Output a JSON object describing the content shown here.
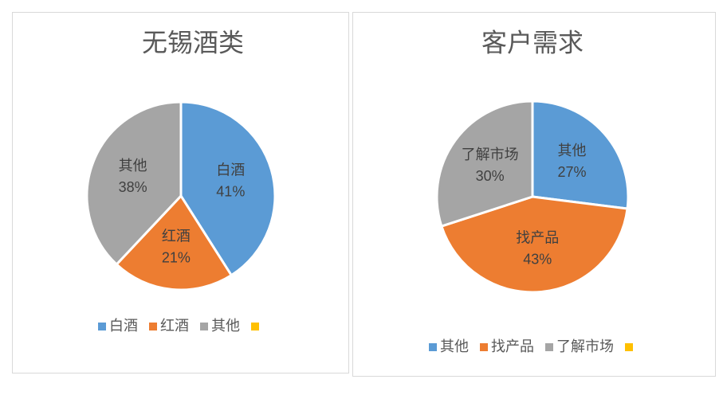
{
  "chart_data": [
    {
      "type": "pie",
      "title": "无锡酒类",
      "categories": [
        "白酒",
        "红酒",
        "其他",
        null
      ],
      "values": [
        41,
        21,
        38,
        0
      ],
      "value_labels": [
        "41%",
        "21%",
        "38%",
        null
      ],
      "colors": [
        "#5b9bd5",
        "#ed7d31",
        "#a5a5a5",
        "#ffc000"
      ]
    },
    {
      "type": "pie",
      "title": "客户需求",
      "categories": [
        "其他",
        "找产品",
        "了解市场",
        null
      ],
      "values": [
        27,
        43,
        30,
        0
      ],
      "value_labels": [
        "27%",
        "43%",
        "30%",
        null
      ],
      "colors": [
        "#5b9bd5",
        "#ed7d31",
        "#a5a5a5",
        "#ffc000"
      ]
    }
  ]
}
